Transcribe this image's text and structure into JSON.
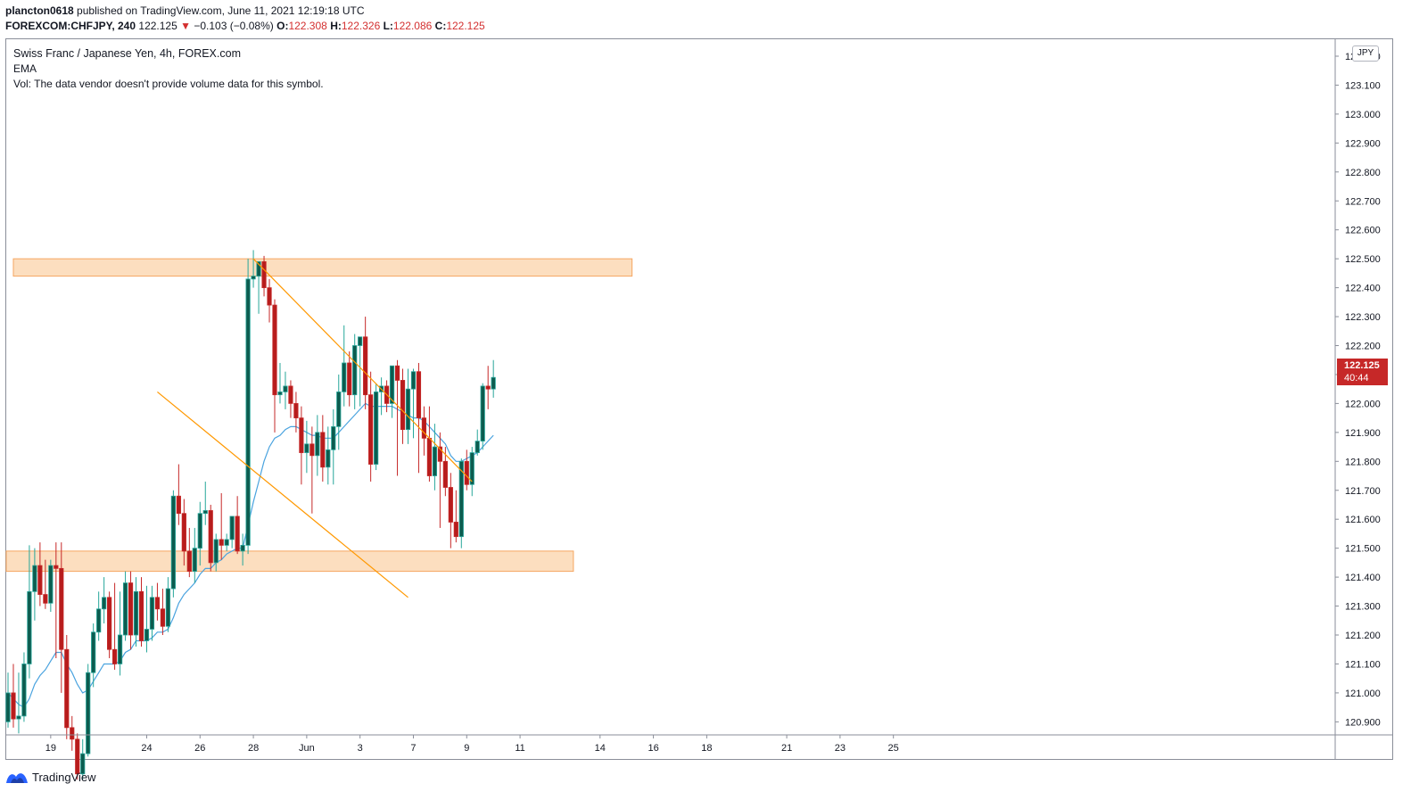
{
  "header": {
    "user": "plancton0618",
    "published": "published on TradingView.com, June 11, 2021 12:19:18 UTC",
    "symbol_line": "FOREXCOM:CHFJPY, 240",
    "last": "122.125",
    "change_arrow": "▼",
    "change": "−0.103 (−0.08%)",
    "o_label": "O:",
    "o_value": "122.308",
    "h_label": "H:",
    "h_value": "122.326",
    "l_label": "L:",
    "l_value": "122.086",
    "c_label": "C:",
    "c_value": "122.125"
  },
  "legend": {
    "title": "Swiss Franc / Japanese Yen, 4h, FOREX.com",
    "ema": "EMA",
    "vol": "Vol: The data vendor doesn't provide volume data for this symbol."
  },
  "price_axis": {
    "currency": "JPY",
    "current_price": "122.125",
    "countdown": "40:44"
  },
  "footer": {
    "brand": "TradingView"
  },
  "colors": {
    "up": "#26a69a",
    "up_body": "#0d5c4f",
    "down": "#c62828",
    "down_body": "#b71c1c",
    "ema": "#4aa3df",
    "trendline": "#ff9800",
    "zone": "#fcd8b4",
    "zone_border": "#f5a661"
  },
  "chart_data": {
    "type": "candlestick",
    "symbol": "FOREXCOM:CHFJPY",
    "timeframe": "4h",
    "ylim": [
      120.83,
      123.23
    ],
    "y_ticks": [
      "123.200",
      "123.100",
      "123.000",
      "122.900",
      "122.800",
      "122.700",
      "122.600",
      "122.500",
      "122.400",
      "122.300",
      "122.200",
      "122.100",
      "122.000",
      "121.900",
      "121.800",
      "121.700",
      "121.600",
      "121.500",
      "121.400",
      "121.300",
      "121.200",
      "121.100",
      "121.000",
      "120.900"
    ],
    "x_ticks": [
      {
        "bar": 8,
        "label": "19"
      },
      {
        "bar": 26,
        "label": "24"
      },
      {
        "bar": 36,
        "label": "26"
      },
      {
        "bar": 46,
        "label": "28"
      },
      {
        "bar": 56,
        "label": "Jun"
      },
      {
        "bar": 66,
        "label": "3"
      },
      {
        "bar": 76,
        "label": "7"
      },
      {
        "bar": 86,
        "label": "9"
      },
      {
        "bar": 96,
        "label": "11"
      },
      {
        "bar": 111,
        "label": "14"
      },
      {
        "bar": 121,
        "label": "16"
      },
      {
        "bar": 131,
        "label": "18"
      },
      {
        "bar": 146,
        "label": "21"
      },
      {
        "bar": 156,
        "label": "23"
      },
      {
        "bar": 166,
        "label": "25"
      }
    ],
    "candles": [
      {
        "o": 120.9,
        "h": 121.07,
        "l": 120.88,
        "c": 121.0
      },
      {
        "o": 121.0,
        "h": 121.1,
        "l": 120.88,
        "c": 120.91
      },
      {
        "o": 120.91,
        "h": 121.07,
        "l": 120.86,
        "c": 120.92
      },
      {
        "o": 120.92,
        "h": 121.14,
        "l": 120.9,
        "c": 121.1
      },
      {
        "o": 121.1,
        "h": 121.51,
        "l": 121.05,
        "c": 121.35
      },
      {
        "o": 121.35,
        "h": 121.5,
        "l": 121.25,
        "c": 121.44
      },
      {
        "o": 121.44,
        "h": 121.52,
        "l": 121.3,
        "c": 121.34
      },
      {
        "o": 121.34,
        "h": 121.46,
        "l": 121.29,
        "c": 121.31
      },
      {
        "o": 121.31,
        "h": 121.46,
        "l": 121.28,
        "c": 121.44
      },
      {
        "o": 121.44,
        "h": 121.52,
        "l": 121.12,
        "c": 121.43
      },
      {
        "o": 121.43,
        "h": 121.52,
        "l": 121.0,
        "c": 121.15
      },
      {
        "o": 121.15,
        "h": 121.2,
        "l": 120.84,
        "c": 120.88
      },
      {
        "o": 120.88,
        "h": 120.92,
        "l": 120.8,
        "c": 120.84
      },
      {
        "o": 120.84,
        "h": 120.86,
        "l": 120.7,
        "c": 120.72
      },
      {
        "o": 120.72,
        "h": 120.84,
        "l": 120.7,
        "c": 120.79
      },
      {
        "o": 120.79,
        "h": 121.1,
        "l": 120.78,
        "c": 121.07
      },
      {
        "o": 121.07,
        "h": 121.24,
        "l": 121.02,
        "c": 121.21
      },
      {
        "o": 121.21,
        "h": 121.35,
        "l": 121.18,
        "c": 121.29
      },
      {
        "o": 121.29,
        "h": 121.4,
        "l": 121.24,
        "c": 121.33
      },
      {
        "o": 121.33,
        "h": 121.35,
        "l": 121.12,
        "c": 121.15
      },
      {
        "o": 121.15,
        "h": 121.38,
        "l": 121.08,
        "c": 121.1
      },
      {
        "o": 121.1,
        "h": 121.35,
        "l": 121.06,
        "c": 121.2
      },
      {
        "o": 121.2,
        "h": 121.42,
        "l": 121.18,
        "c": 121.38
      },
      {
        "o": 121.38,
        "h": 121.42,
        "l": 121.15,
        "c": 121.2
      },
      {
        "o": 121.2,
        "h": 121.4,
        "l": 121.16,
        "c": 121.35
      },
      {
        "o": 121.35,
        "h": 121.4,
        "l": 121.16,
        "c": 121.18
      },
      {
        "o": 121.18,
        "h": 121.37,
        "l": 121.14,
        "c": 121.22
      },
      {
        "o": 121.22,
        "h": 121.37,
        "l": 121.18,
        "c": 121.33
      },
      {
        "o": 121.33,
        "h": 121.38,
        "l": 121.25,
        "c": 121.29
      },
      {
        "o": 121.29,
        "h": 121.36,
        "l": 121.2,
        "c": 121.23
      },
      {
        "o": 121.23,
        "h": 121.4,
        "l": 121.21,
        "c": 121.36
      },
      {
        "o": 121.36,
        "h": 121.7,
        "l": 121.33,
        "c": 121.68
      },
      {
        "o": 121.68,
        "h": 121.79,
        "l": 121.58,
        "c": 121.62
      },
      {
        "o": 121.62,
        "h": 121.67,
        "l": 121.44,
        "c": 121.49
      },
      {
        "o": 121.49,
        "h": 121.57,
        "l": 121.4,
        "c": 121.42
      },
      {
        "o": 121.42,
        "h": 121.57,
        "l": 121.38,
        "c": 121.5
      },
      {
        "o": 121.5,
        "h": 121.66,
        "l": 121.44,
        "c": 121.62
      },
      {
        "o": 121.62,
        "h": 121.73,
        "l": 121.58,
        "c": 121.63
      },
      {
        "o": 121.63,
        "h": 121.65,
        "l": 121.42,
        "c": 121.45
      },
      {
        "o": 121.45,
        "h": 121.55,
        "l": 121.42,
        "c": 121.53
      },
      {
        "o": 121.53,
        "h": 121.69,
        "l": 121.46,
        "c": 121.51
      },
      {
        "o": 121.51,
        "h": 121.55,
        "l": 121.49,
        "c": 121.53
      },
      {
        "o": 121.53,
        "h": 121.6,
        "l": 121.5,
        "c": 121.61
      },
      {
        "o": 121.61,
        "h": 121.68,
        "l": 121.48,
        "c": 121.49
      },
      {
        "o": 121.49,
        "h": 121.55,
        "l": 121.44,
        "c": 121.51
      },
      {
        "o": 121.51,
        "h": 122.5,
        "l": 121.48,
        "c": 122.43
      },
      {
        "o": 122.43,
        "h": 122.53,
        "l": 122.4,
        "c": 122.44
      },
      {
        "o": 122.44,
        "h": 122.49,
        "l": 122.31,
        "c": 122.49
      },
      {
        "o": 122.49,
        "h": 122.51,
        "l": 122.37,
        "c": 122.4
      },
      {
        "o": 122.4,
        "h": 122.43,
        "l": 122.28,
        "c": 122.34
      },
      {
        "o": 122.34,
        "h": 122.36,
        "l": 121.9,
        "c": 122.03
      },
      {
        "o": 122.03,
        "h": 122.14,
        "l": 122.0,
        "c": 122.04
      },
      {
        "o": 122.04,
        "h": 122.11,
        "l": 121.98,
        "c": 122.06
      },
      {
        "o": 122.06,
        "h": 122.08,
        "l": 121.95,
        "c": 122.0
      },
      {
        "o": 122.0,
        "h": 122.04,
        "l": 121.9,
        "c": 121.95
      },
      {
        "o": 121.95,
        "h": 121.99,
        "l": 121.72,
        "c": 121.83
      },
      {
        "o": 121.83,
        "h": 121.94,
        "l": 121.76,
        "c": 121.86
      },
      {
        "o": 121.86,
        "h": 121.92,
        "l": 121.62,
        "c": 121.82
      },
      {
        "o": 121.82,
        "h": 121.96,
        "l": 121.75,
        "c": 121.9
      },
      {
        "o": 121.9,
        "h": 121.96,
        "l": 121.73,
        "c": 121.78
      },
      {
        "o": 121.78,
        "h": 121.92,
        "l": 121.72,
        "c": 121.84
      },
      {
        "o": 121.84,
        "h": 121.98,
        "l": 121.72,
        "c": 121.92
      },
      {
        "o": 121.92,
        "h": 122.1,
        "l": 121.84,
        "c": 122.04
      },
      {
        "o": 122.04,
        "h": 122.27,
        "l": 121.99,
        "c": 122.14
      },
      {
        "o": 122.14,
        "h": 122.18,
        "l": 121.99,
        "c": 122.03
      },
      {
        "o": 122.03,
        "h": 122.24,
        "l": 121.98,
        "c": 122.2
      },
      {
        "o": 122.2,
        "h": 122.23,
        "l": 121.99,
        "c": 122.23
      },
      {
        "o": 122.23,
        "h": 122.3,
        "l": 121.98,
        "c": 122.03
      },
      {
        "o": 122.03,
        "h": 122.11,
        "l": 121.73,
        "c": 121.79
      },
      {
        "o": 121.79,
        "h": 122.07,
        "l": 121.77,
        "c": 122.04
      },
      {
        "o": 122.04,
        "h": 122.09,
        "l": 121.96,
        "c": 122.06
      },
      {
        "o": 122.06,
        "h": 122.08,
        "l": 121.97,
        "c": 122.0
      },
      {
        "o": 122.0,
        "h": 122.13,
        "l": 121.95,
        "c": 122.13
      },
      {
        "o": 122.13,
        "h": 122.15,
        "l": 121.75,
        "c": 122.08
      },
      {
        "o": 122.08,
        "h": 122.12,
        "l": 121.86,
        "c": 121.91
      },
      {
        "o": 121.91,
        "h": 122.12,
        "l": 121.86,
        "c": 122.05
      },
      {
        "o": 122.05,
        "h": 122.12,
        "l": 121.88,
        "c": 122.11
      },
      {
        "o": 122.11,
        "h": 122.14,
        "l": 121.76,
        "c": 121.95
      },
      {
        "o": 121.95,
        "h": 121.99,
        "l": 121.82,
        "c": 121.88
      },
      {
        "o": 121.88,
        "h": 121.99,
        "l": 121.73,
        "c": 121.75
      },
      {
        "o": 121.75,
        "h": 121.93,
        "l": 121.7,
        "c": 121.85
      },
      {
        "o": 121.85,
        "h": 121.9,
        "l": 121.57,
        "c": 121.8
      },
      {
        "o": 121.8,
        "h": 121.85,
        "l": 121.68,
        "c": 121.71
      },
      {
        "o": 121.71,
        "h": 121.76,
        "l": 121.5,
        "c": 121.59
      },
      {
        "o": 121.59,
        "h": 121.7,
        "l": 121.52,
        "c": 121.54
      },
      {
        "o": 121.54,
        "h": 121.81,
        "l": 121.5,
        "c": 121.8
      },
      {
        "o": 121.8,
        "h": 121.84,
        "l": 121.7,
        "c": 121.72
      },
      {
        "o": 121.72,
        "h": 121.85,
        "l": 121.68,
        "c": 121.83
      },
      {
        "o": 121.83,
        "h": 121.91,
        "l": 121.82,
        "c": 121.87
      },
      {
        "o": 121.87,
        "h": 122.07,
        "l": 121.84,
        "c": 122.06
      },
      {
        "o": 122.06,
        "h": 122.13,
        "l": 121.98,
        "c": 122.05
      },
      {
        "o": 122.05,
        "h": 122.15,
        "l": 122.02,
        "c": 122.09
      }
    ],
    "ema": [
      121.0,
      120.98,
      120.96,
      120.95,
      120.98,
      121.03,
      121.06,
      121.08,
      121.11,
      121.14,
      121.14,
      121.1,
      121.07,
      121.03,
      121.0,
      121.01,
      121.04,
      121.07,
      121.1,
      121.1,
      121.1,
      121.11,
      121.14,
      121.15,
      121.18,
      121.18,
      121.18,
      121.19,
      121.21,
      121.21,
      121.22,
      121.26,
      121.31,
      121.34,
      121.36,
      121.38,
      121.41,
      121.43,
      121.43,
      121.45,
      121.46,
      121.48,
      121.49,
      121.5,
      121.5,
      121.58,
      121.66,
      121.73,
      121.8,
      121.85,
      121.88,
      121.89,
      121.91,
      121.92,
      121.92,
      121.91,
      121.9,
      121.89,
      121.89,
      121.88,
      121.88,
      121.88,
      121.9,
      121.92,
      121.94,
      121.96,
      121.98,
      122.0,
      121.99,
      121.99,
      121.99,
      121.99,
      121.99,
      121.98,
      121.97,
      121.96,
      121.95,
      121.95,
      121.94,
      121.92,
      121.9,
      121.88,
      121.86,
      121.82,
      121.8,
      121.8,
      121.81,
      121.82,
      121.83,
      121.85,
      121.87,
      121.89
    ],
    "zones": [
      {
        "from": 122.44,
        "to": 122.5,
        "x_start_bar": 1,
        "x_end_bar": 117
      },
      {
        "from": 121.42,
        "to": 121.49,
        "x_start_bar": -1,
        "x_end_bar": 106
      }
    ],
    "trendlines": [
      {
        "bar1": 46,
        "p1": 122.5,
        "bar2": 87,
        "p2": 121.73
      },
      {
        "bar1": 28,
        "p1": 122.04,
        "bar2": 75,
        "p2": 121.33
      }
    ]
  }
}
